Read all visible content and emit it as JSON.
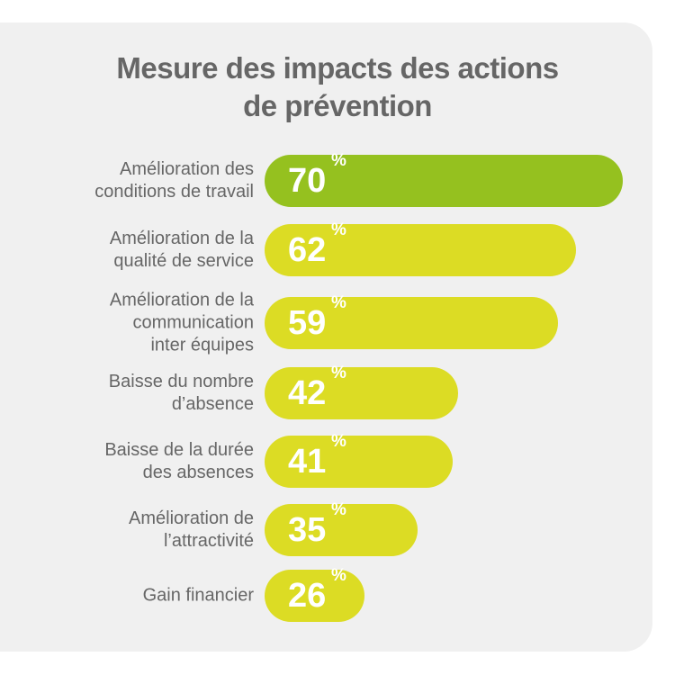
{
  "chart_data": {
    "type": "bar",
    "orientation": "horizontal",
    "title": "Mesure des impacts des actions de prévention",
    "title_lines": [
      "Mesure des impacts des actions",
      "de prévention"
    ],
    "categories": [
      "Amélioration des\nconditions de travail",
      "Amélioration de la\nqualité de service",
      "Amélioration de la\ncommunication\ninter équipes",
      "Baisse du nombre\nd’absence",
      "Baisse de la durée\ndes absences",
      "Amélioration de\nl’attractivité",
      "Gain financier"
    ],
    "values": [
      70,
      62,
      59,
      42,
      41,
      35,
      26
    ],
    "unit": "%",
    "colors": {
      "highlight": "#95c11f",
      "default": "#dcdc24",
      "background": "#f0f0f0",
      "text": "#666666"
    },
    "grid": false,
    "legend": "none"
  }
}
